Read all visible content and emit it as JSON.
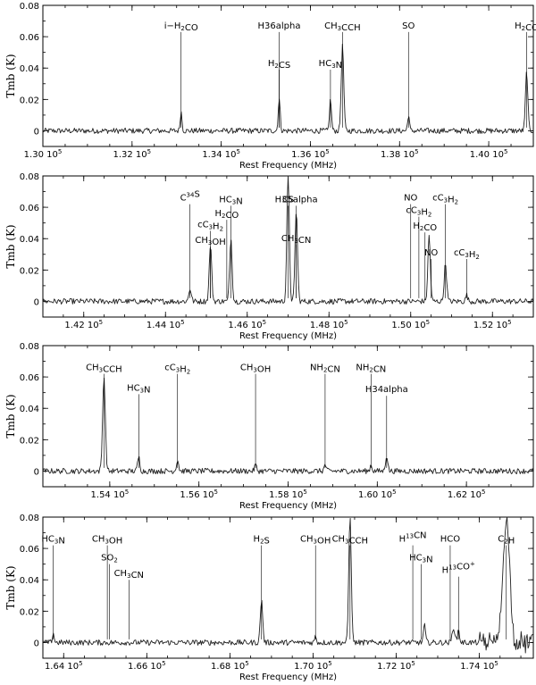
{
  "figure": {
    "xlabel": "Rest Frequency (MHz)",
    "ylabel": "Tmb (K)"
  },
  "chart_data": [
    {
      "type": "line",
      "xlabel": "Rest Frequency (MHz)",
      "ylabel": "Tmb (K)",
      "xlim": [
        130000,
        141000
      ],
      "ylim": [
        -0.01,
        0.08
      ],
      "xticks": [
        {
          "x": 130000,
          "label": "1.30 10^5"
        },
        {
          "x": 132000,
          "label": "1.32 10^5"
        },
        {
          "x": 134000,
          "label": "1.34 10^5"
        },
        {
          "x": 136000,
          "label": "1.36 10^5"
        },
        {
          "x": 138000,
          "label": "1.38 10^5"
        },
        {
          "x": 140000,
          "label": "1.40 10^5"
        }
      ],
      "yticks": [
        "0.08",
        "0.06",
        "0.04",
        "0.02",
        "0"
      ],
      "peaks": [
        {
          "x": 133100,
          "y": 0.012,
          "w": 20
        },
        {
          "x": 135300,
          "y": 0.02,
          "w": 22
        },
        {
          "x": 136450,
          "y": 0.02,
          "w": 22
        },
        {
          "x": 136720,
          "y": 0.054,
          "w": 28
        },
        {
          "x": 138200,
          "y": 0.01,
          "w": 20
        },
        {
          "x": 140850,
          "y": 0.038,
          "w": 26
        }
      ],
      "lines": [
        {
          "x": 133100,
          "label": "i-H2CO",
          "top": 0.063
        },
        {
          "x": 135300,
          "label": "H36alpha",
          "top": 0.063
        },
        {
          "x": 135300,
          "label": "H2CS",
          "top": 0.039
        },
        {
          "x": 136450,
          "label": "HC3N",
          "top": 0.039
        },
        {
          "x": 136720,
          "label": "CH3CCH",
          "top": 0.063
        },
        {
          "x": 138200,
          "label": "SO",
          "top": 0.063
        },
        {
          "x": 140850,
          "label": "H2CO",
          "top": 0.063
        }
      ]
    },
    {
      "type": "line",
      "xlabel": "Rest Frequency (MHz)",
      "ylabel": "Tmb (K)",
      "xlim": [
        141000,
        153000
      ],
      "ylim": [
        -0.01,
        0.08
      ],
      "xticks": [
        {
          "x": 142000,
          "label": "1.42 10^5"
        },
        {
          "x": 144000,
          "label": "1.44 10^5"
        },
        {
          "x": 146000,
          "label": "1.46 10^5"
        },
        {
          "x": 148000,
          "label": "1.48 10^5"
        },
        {
          "x": 150000,
          "label": "1.50 10^5"
        },
        {
          "x": 152000,
          "label": "1.52 10^5"
        }
      ],
      "yticks": [
        "0.08",
        "0.06",
        "0.04",
        "0.02",
        "0"
      ],
      "peaks": [
        {
          "x": 144600,
          "y": 0.008,
          "w": 30
        },
        {
          "x": 145100,
          "y": 0.036,
          "w": 30
        },
        {
          "x": 145600,
          "y": 0.04,
          "w": 30
        },
        {
          "x": 147000,
          "y": 0.08,
          "w": 30
        },
        {
          "x": 147200,
          "y": 0.058,
          "w": 30
        },
        {
          "x": 150450,
          "y": 0.042,
          "w": 30
        },
        {
          "x": 150850,
          "y": 0.024,
          "w": 30
        },
        {
          "x": 151370,
          "y": 0.004,
          "w": 25
        }
      ],
      "lines": [
        {
          "x": 144600,
          "label": "C34S",
          "top": 0.062
        },
        {
          "x": 145100,
          "label": "cC3H2",
          "top": 0.045
        },
        {
          "x": 145100,
          "label": "CH3OH",
          "top": 0.035
        },
        {
          "x": 145500,
          "label": "H2CO",
          "top": 0.052
        },
        {
          "x": 145600,
          "label": "HC3N",
          "top": 0.061
        },
        {
          "x": 147000,
          "label": "CS",
          "top": 0.061
        },
        {
          "x": 147200,
          "label": "H35alpha",
          "top": 0.061
        },
        {
          "x": 147200,
          "label": "CH3CN",
          "top": 0.036
        },
        {
          "x": 150000,
          "label": "NO",
          "top": 0.062
        },
        {
          "x": 150200,
          "label": "cC3H2",
          "top": 0.054
        },
        {
          "x": 150350,
          "label": "H2CO",
          "top": 0.044
        },
        {
          "x": 150500,
          "label": "NO",
          "top": 0.027
        },
        {
          "x": 150850,
          "label": "cC3H2",
          "top": 0.062
        },
        {
          "x": 151370,
          "label": "cC3H2",
          "top": 0.027
        }
      ]
    },
    {
      "type": "line",
      "xlabel": "Rest Frequency (MHz)",
      "ylabel": "Tmb (K)",
      "xlim": [
        152500,
        163500
      ],
      "ylim": [
        -0.01,
        0.08
      ],
      "xticks": [
        {
          "x": 154000,
          "label": "1.54 10^5"
        },
        {
          "x": 156000,
          "label": "1.56 10^5"
        },
        {
          "x": 158000,
          "label": "1.58 10^5"
        },
        {
          "x": 160000,
          "label": "1.60 10^5"
        },
        {
          "x": 162000,
          "label": "1.62 10^5"
        }
      ],
      "yticks": [
        "0.08",
        "0.06",
        "0.04",
        "0.02",
        "0"
      ],
      "peaks": [
        {
          "x": 153870,
          "y": 0.06,
          "w": 30
        },
        {
          "x": 154650,
          "y": 0.009,
          "w": 25
        },
        {
          "x": 155520,
          "y": 0.007,
          "w": 25
        },
        {
          "x": 157270,
          "y": 0.004,
          "w": 22
        },
        {
          "x": 158830,
          "y": 0.004,
          "w": 22
        },
        {
          "x": 159860,
          "y": 0.004,
          "w": 22
        },
        {
          "x": 160210,
          "y": 0.01,
          "w": 25
        }
      ],
      "lines": [
        {
          "x": 153870,
          "label": "CH3CCH",
          "top": 0.062
        },
        {
          "x": 154650,
          "label": "HC3N",
          "top": 0.049
        },
        {
          "x": 155520,
          "label": "cC3H2",
          "top": 0.062
        },
        {
          "x": 157270,
          "label": "CH3OH",
          "top": 0.062
        },
        {
          "x": 158830,
          "label": "NH2CN",
          "top": 0.062
        },
        {
          "x": 159860,
          "label": "NH2CN",
          "top": 0.062
        },
        {
          "x": 160210,
          "label": "H34alpha",
          "top": 0.048
        }
      ]
    },
    {
      "type": "line",
      "xlabel": "Rest Frequency (MHz)",
      "ylabel": "Tmb (K)",
      "xlim": [
        163500,
        175300
      ],
      "ylim": [
        -0.01,
        0.08
      ],
      "xticks": [
        {
          "x": 164000,
          "label": "1.64 10^5"
        },
        {
          "x": 166000,
          "label": "1.66 10^5"
        },
        {
          "x": 168000,
          "label": "1.68 10^5"
        },
        {
          "x": 170000,
          "label": "1.70 10^5"
        },
        {
          "x": 172000,
          "label": "1.72 10^5"
        },
        {
          "x": 174000,
          "label": "1.74 10^5"
        }
      ],
      "yticks": [
        "0.08",
        "0.06",
        "0.04",
        "0.02",
        "0"
      ],
      "peaks": [
        {
          "x": 163750,
          "y": 0.006,
          "w": 22
        },
        {
          "x": 168760,
          "y": 0.027,
          "w": 28
        },
        {
          "x": 170060,
          "y": 0.004,
          "w": 22
        },
        {
          "x": 170890,
          "y": 0.08,
          "w": 30
        },
        {
          "x": 172680,
          "y": 0.011,
          "w": 25
        },
        {
          "x": 173380,
          "y": 0.01,
          "w": 30
        },
        {
          "x": 173500,
          "y": 0.008,
          "w": 25
        },
        {
          "x": 174650,
          "y": 0.08,
          "w": 80
        }
      ],
      "lines": [
        {
          "x": 163750,
          "label": "HC3N",
          "top": 0.062
        },
        {
          "x": 165050,
          "label": "CH3OH",
          "top": 0.062
        },
        {
          "x": 165100,
          "label": "SO2",
          "top": 0.05
        },
        {
          "x": 165570,
          "label": "CH3CN",
          "top": 0.04
        },
        {
          "x": 168760,
          "label": "H2S",
          "top": 0.062
        },
        {
          "x": 170060,
          "label": "CH3OH",
          "top": 0.062
        },
        {
          "x": 170890,
          "label": "CH3CCH",
          "top": 0.062
        },
        {
          "x": 172400,
          "label": "H13CN",
          "top": 0.062
        },
        {
          "x": 172600,
          "label": "HC3N",
          "top": 0.05
        },
        {
          "x": 173300,
          "label": "HCO",
          "top": 0.062
        },
        {
          "x": 173500,
          "label": "H13CO+",
          "top": 0.042
        },
        {
          "x": 174650,
          "label": "C2H",
          "top": 0.062
        }
      ]
    }
  ]
}
